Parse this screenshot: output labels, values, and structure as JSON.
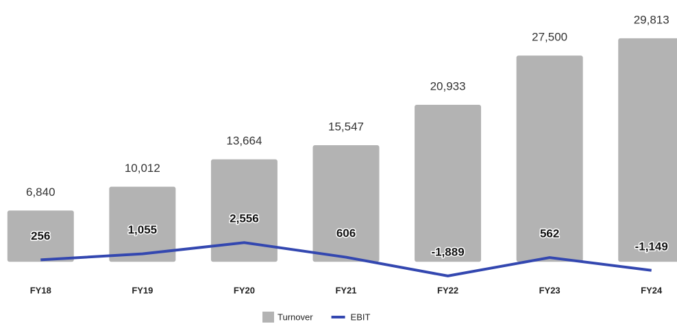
{
  "chart_data": {
    "type": "bar-line",
    "categories": [
      "FY18",
      "FY19",
      "FY20",
      "FY21",
      "FY22",
      "FY23",
      "FY24"
    ],
    "series": [
      {
        "name": "Turnover",
        "type": "bar",
        "color": "#b3b3b3",
        "values": [
          6840,
          10012,
          13664,
          15547,
          20933,
          27500,
          29813
        ],
        "value_labels": [
          "6,840",
          "10,012",
          "13,664",
          "15,547",
          "20,933",
          "27,500",
          "29,813"
        ]
      },
      {
        "name": "EBIT",
        "type": "line",
        "color": "#3347b0",
        "values": [
          256,
          1055,
          2556,
          606,
          -1889,
          562,
          -1149
        ],
        "value_labels": [
          "256",
          "1,055",
          "2,556",
          "606",
          "-1,889",
          "562",
          "-1,149"
        ]
      }
    ],
    "ylim": [
      -4000,
      34000
    ],
    "legend": "bottom"
  }
}
